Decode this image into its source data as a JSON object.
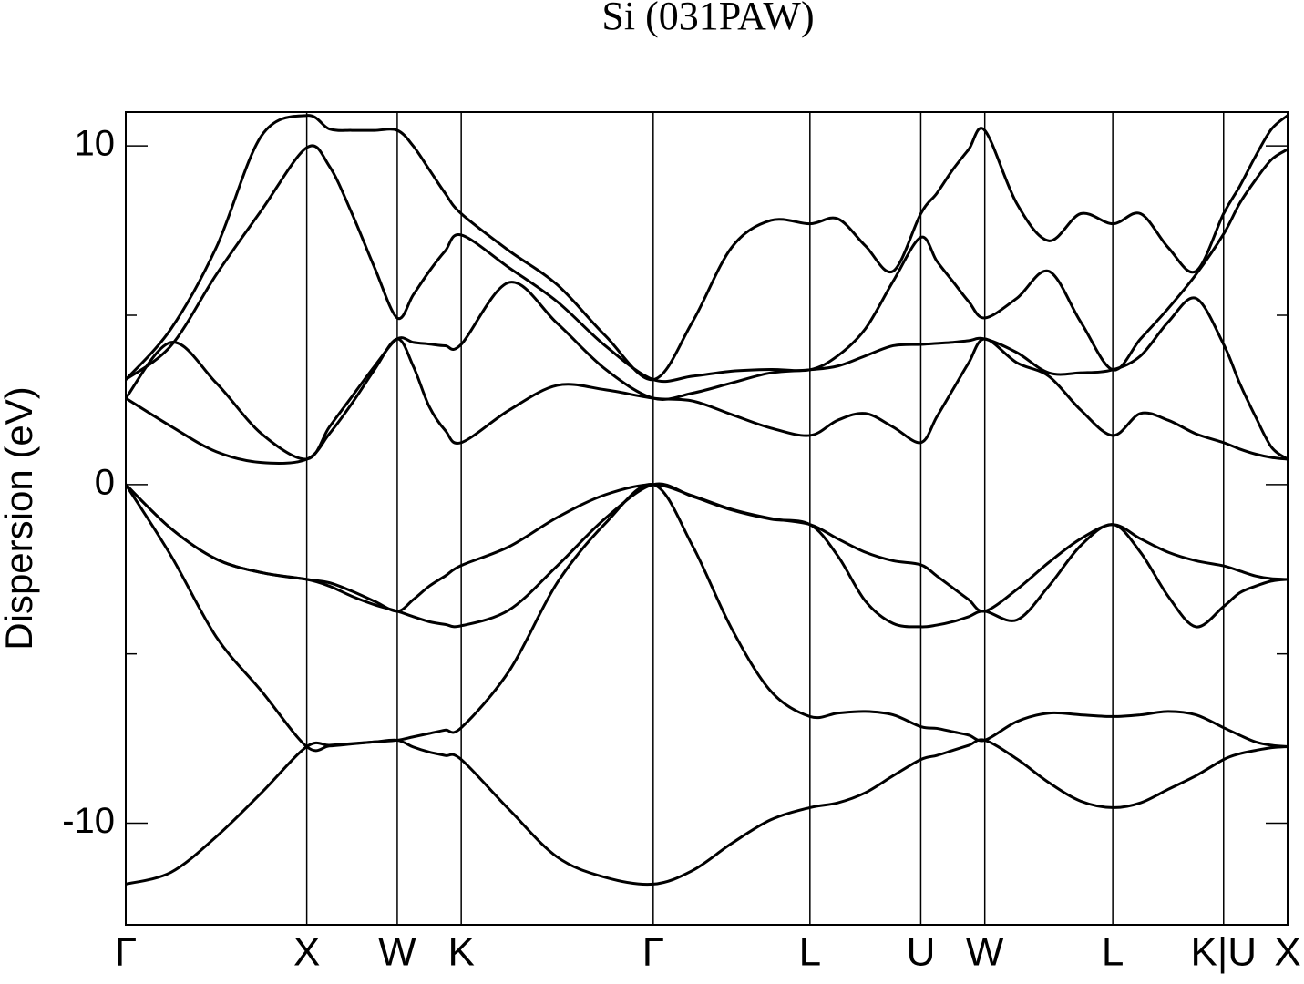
{
  "chart_data": {
    "type": "line",
    "title": "Si (031PAW)",
    "y_label": "Dispersion (eV)",
    "xlim": [
      0,
      6.4193
    ],
    "ylim": [
      -13,
      11
    ],
    "xticks": [
      {
        "value": 0,
        "label": "Γ"
      },
      {
        "value": 1,
        "label": "X"
      },
      {
        "value": 1.5,
        "label": "W"
      },
      {
        "value": 1.8536,
        "label": "K"
      },
      {
        "value": 2.9142,
        "label": "Γ"
      },
      {
        "value": 3.7802,
        "label": "L"
      },
      {
        "value": 4.3926,
        "label": "U"
      },
      {
        "value": 4.7462,
        "label": "W"
      },
      {
        "value": 5.4533,
        "label": "L"
      },
      {
        "value": 6.0657,
        "label": "K|U"
      },
      {
        "value": 6.4193,
        "label": "X"
      }
    ],
    "yticks": [
      -10,
      0,
      10
    ],
    "yminorticks": [
      -5,
      5
    ],
    "grid": "x",
    "x": [
      0,
      0.25,
      0.5,
      0.75,
      1,
      1.125,
      1.25,
      1.375,
      1.5,
      1.588,
      1.677,
      1.765,
      1.8536,
      2.1188,
      2.3839,
      2.6491,
      2.9142,
      3.1307,
      3.3472,
      3.5637,
      3.7802,
      3.9333,
      4.0864,
      4.2395,
      4.3926,
      4.481,
      4.5694,
      4.6578,
      4.7462,
      4.923,
      5.0998,
      5.2765,
      5.4533,
      5.6064,
      5.7595,
      5.9126,
      6.0657,
      6.154,
      6.2425,
      6.3309,
      6.4193
    ],
    "series": [
      {
        "color": "#000000",
        "values": [
          -11.8,
          -11.45,
          -10.4,
          -9.1,
          -7.74,
          -7.7,
          -7.65,
          -7.6,
          -7.55,
          -7.75,
          -7.9,
          -8.0,
          -8.12,
          -9.6,
          -11.0,
          -11.6,
          -11.8,
          -11.4,
          -10.6,
          -9.9,
          -9.54,
          -9.4,
          -9.1,
          -8.6,
          -8.12,
          -8.0,
          -7.85,
          -7.7,
          -7.55,
          -8.1,
          -8.8,
          -9.35,
          -9.54,
          -9.4,
          -9.0,
          -8.6,
          -8.12,
          -7.95,
          -7.85,
          -7.77,
          -7.74
        ]
      },
      {
        "color": "#000000",
        "values": [
          0,
          -2.1,
          -4.5,
          -6.1,
          -7.74,
          -7.72,
          -7.66,
          -7.6,
          -7.55,
          -7.45,
          -7.35,
          -7.25,
          -7.18,
          -5.5,
          -2.9,
          -1.15,
          0,
          -1.8,
          -4.25,
          -6.1,
          -6.85,
          -6.75,
          -6.7,
          -6.8,
          -7.15,
          -7.2,
          -7.3,
          -7.4,
          -7.55,
          -7.0,
          -6.75,
          -6.8,
          -6.85,
          -6.8,
          -6.7,
          -6.8,
          -7.18,
          -7.4,
          -7.6,
          -7.7,
          -7.74
        ]
      },
      {
        "color": "#000000",
        "values": [
          0,
          -1.3,
          -2.2,
          -2.6,
          -2.8,
          -3.0,
          -3.3,
          -3.55,
          -3.74,
          -3.9,
          -4.05,
          -4.13,
          -4.17,
          -3.7,
          -2.4,
          -1.0,
          0,
          -0.35,
          -0.75,
          -1.02,
          -1.18,
          -2.1,
          -3.44,
          -4.1,
          -4.2,
          -4.15,
          -4.05,
          -3.9,
          -3.74,
          -4.0,
          -3.0,
          -1.8,
          -1.18,
          -2.0,
          -3.3,
          -4.2,
          -3.6,
          -3.2,
          -3.0,
          -2.85,
          -2.8
        ]
      },
      {
        "color": "#000000",
        "values": [
          0,
          -1.3,
          -2.2,
          -2.6,
          -2.8,
          -2.9,
          -3.15,
          -3.45,
          -3.74,
          -3.4,
          -3.0,
          -2.7,
          -2.39,
          -1.83,
          -0.97,
          -0.3,
          0,
          -0.33,
          -0.73,
          -1.0,
          -1.18,
          -1.6,
          -2.0,
          -2.25,
          -2.37,
          -2.7,
          -3.05,
          -3.4,
          -3.74,
          -3.1,
          -2.3,
          -1.6,
          -1.18,
          -1.6,
          -2.0,
          -2.25,
          -2.4,
          -2.55,
          -2.7,
          -2.78,
          -2.8
        ]
      },
      {
        "color": "#000000",
        "values": [
          2.55,
          1.72,
          0.97,
          0.65,
          0.75,
          1.5,
          2.4,
          3.4,
          4.3,
          3.5,
          2.3,
          1.6,
          1.24,
          2.2,
          2.93,
          2.8,
          2.55,
          2.47,
          2.07,
          1.67,
          1.45,
          1.9,
          2.1,
          1.7,
          1.24,
          2.0,
          2.8,
          3.6,
          4.3,
          3.6,
          3.2,
          2.2,
          1.45,
          2.1,
          1.9,
          1.5,
          1.24,
          1.05,
          0.9,
          0.8,
          0.75
        ]
      },
      {
        "color": "#000000",
        "values": [
          2.55,
          4.2,
          3.0,
          1.5,
          0.75,
          1.7,
          2.6,
          3.5,
          4.3,
          4.2,
          4.15,
          4.1,
          4.14,
          5.97,
          4.76,
          3.41,
          2.55,
          2.7,
          3.0,
          3.3,
          3.39,
          3.5,
          3.8,
          4.1,
          4.14,
          4.17,
          4.2,
          4.25,
          4.3,
          3.9,
          3.3,
          3.3,
          3.39,
          3.8,
          4.8,
          5.5,
          4.14,
          3.0,
          2.0,
          1.1,
          0.75
        ]
      },
      {
        "color": "#000000",
        "values": [
          3.1,
          4.1,
          6.2,
          8.1,
          9.95,
          9.4,
          8.0,
          6.4,
          4.92,
          5.6,
          6.3,
          6.9,
          7.37,
          6.4,
          5.4,
          4.1,
          3.1,
          3.2,
          3.35,
          3.4,
          3.39,
          3.8,
          4.6,
          6.0,
          7.3,
          6.6,
          6.0,
          5.4,
          4.92,
          5.5,
          6.3,
          4.8,
          3.39,
          4.3,
          5.2,
          6.2,
          7.4,
          8.3,
          9.0,
          9.6,
          9.9
        ]
      },
      {
        "color": "#000000",
        "values": [
          3.1,
          4.6,
          7.0,
          10.3,
          10.9,
          10.5,
          10.46,
          10.46,
          10.46,
          10.0,
          9.3,
          8.6,
          8.0,
          6.9,
          5.9,
          4.4,
          3.1,
          4.8,
          7.0,
          7.8,
          7.7,
          7.85,
          7.05,
          6.3,
          8.0,
          8.6,
          9.3,
          9.9,
          10.46,
          8.3,
          7.2,
          8.0,
          7.7,
          8.0,
          7.0,
          6.3,
          8.0,
          8.8,
          9.7,
          10.5,
          10.9
        ]
      }
    ]
  }
}
